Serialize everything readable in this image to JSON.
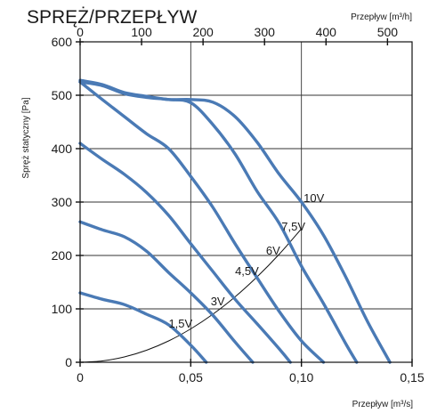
{
  "chart_data": {
    "type": "line",
    "title": "SPRĘŻ/PRZEPŁYW",
    "ylabel": "Spręż statyczny [Pa]",
    "xlabel": "Przepływ [m³/s]",
    "x2label": "Przepływ [m³/h]",
    "x_ticks": [
      "0",
      "0,05",
      "0,10",
      "0,15"
    ],
    "x2_ticks": [
      "0",
      "100",
      "200",
      "300",
      "400",
      "500"
    ],
    "y_ticks": [
      "0",
      "100",
      "200",
      "300",
      "400",
      "500",
      "600"
    ],
    "xlim": [
      0,
      0.15
    ],
    "x2lim": [
      0,
      540
    ],
    "ylim": [
      0,
      600
    ],
    "grid": true,
    "curve_color": "#4a7ab5",
    "series": [
      {
        "name": "10V",
        "x": [
          0,
          0.01,
          0.02,
          0.03,
          0.04,
          0.05,
          0.06,
          0.07,
          0.08,
          0.09,
          0.1,
          0.11,
          0.12,
          0.13,
          0.14
        ],
        "y": [
          528,
          520,
          505,
          498,
          492,
          492,
          487,
          460,
          412,
          352,
          300,
          238,
          160,
          75,
          0
        ]
      },
      {
        "name": "7,5V",
        "x": [
          0,
          0.01,
          0.02,
          0.03,
          0.04,
          0.05,
          0.06,
          0.07,
          0.08,
          0.09,
          0.1,
          0.11,
          0.12,
          0.125
        ],
        "y": [
          525,
          518,
          503,
          496,
          492,
          486,
          445,
          390,
          320,
          260,
          180,
          110,
          35,
          0
        ]
      },
      {
        "name": "6V",
        "x": [
          0,
          0.01,
          0.02,
          0.03,
          0.04,
          0.05,
          0.06,
          0.07,
          0.08,
          0.09,
          0.1,
          0.11
        ],
        "y": [
          525,
          492,
          460,
          428,
          400,
          348,
          290,
          222,
          158,
          95,
          40,
          0
        ]
      },
      {
        "name": "4,5V",
        "x": [
          0,
          0.01,
          0.02,
          0.03,
          0.04,
          0.05,
          0.06,
          0.07,
          0.08,
          0.09,
          0.095
        ],
        "y": [
          410,
          380,
          352,
          318,
          275,
          222,
          170,
          118,
          72,
          25,
          0
        ]
      },
      {
        "name": "3V",
        "x": [
          0,
          0.01,
          0.02,
          0.03,
          0.04,
          0.05,
          0.06,
          0.07,
          0.078
        ],
        "y": [
          263,
          248,
          235,
          208,
          168,
          130,
          88,
          38,
          0
        ]
      },
      {
        "name": "1,5V",
        "x": [
          0,
          0.01,
          0.02,
          0.03,
          0.04,
          0.05,
          0.057
        ],
        "y": [
          130,
          118,
          108,
          90,
          70,
          32,
          0
        ]
      }
    ],
    "system_curve": {
      "x": [
        0,
        0.01,
        0.02,
        0.03,
        0.04,
        0.05,
        0.06,
        0.07,
        0.08,
        0.09,
        0.1
      ],
      "y": [
        0,
        2.5,
        10,
        22.5,
        40,
        62.5,
        90,
        122.5,
        160,
        202.5,
        250
      ]
    },
    "curve_labels": [
      {
        "text": "10V",
        "x": 0.101,
        "y": 300
      },
      {
        "text": "7,5V",
        "x": 0.091,
        "y": 247
      },
      {
        "text": "6V",
        "x": 0.084,
        "y": 202
      },
      {
        "text": "4,5V",
        "x": 0.07,
        "y": 163
      },
      {
        "text": "3V",
        "x": 0.059,
        "y": 107
      },
      {
        "text": "1,5V",
        "x": 0.04,
        "y": 65
      }
    ]
  }
}
